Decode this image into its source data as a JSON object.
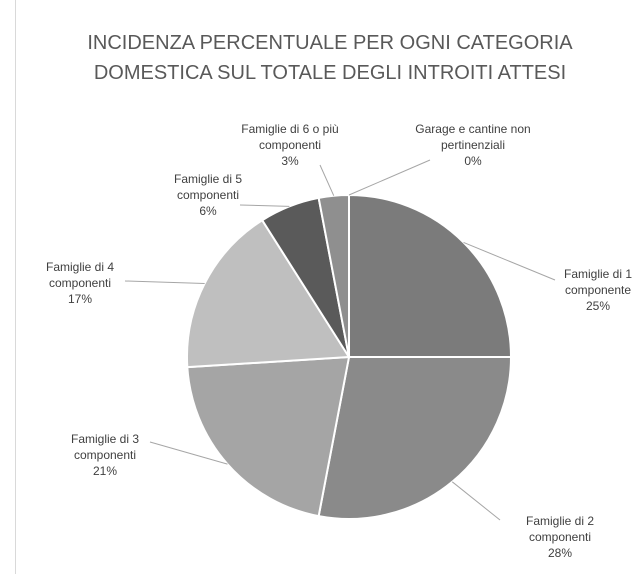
{
  "chart_data": {
    "type": "pie",
    "title": "INCIDENZA PERCENTUALE PER OGNI CATEGORIA DOMESTICA SUL TOTALE DEGLI INTROITI ATTESI",
    "categories": [
      "Famiglie di 1 componente",
      "Famiglie di 2 componenti",
      "Famiglie di 3 componenti",
      "Famiglie di 4 componenti",
      "Famiglie di 5 componenti",
      "Famiglie di 6 o più componenti",
      "Garage e cantine non pertinenziali"
    ],
    "values": [
      25,
      28,
      21,
      17,
      6,
      3,
      0
    ],
    "value_labels": [
      "25%",
      "28%",
      "21%",
      "17%",
      "6%",
      "3%",
      "0%"
    ],
    "colors": [
      "#7b7b7b",
      "#8a8a8a",
      "#a5a5a5",
      "#bfbfbf",
      "#5a5a5a",
      "#8f8f8f",
      "#a0a0a0"
    ]
  }
}
